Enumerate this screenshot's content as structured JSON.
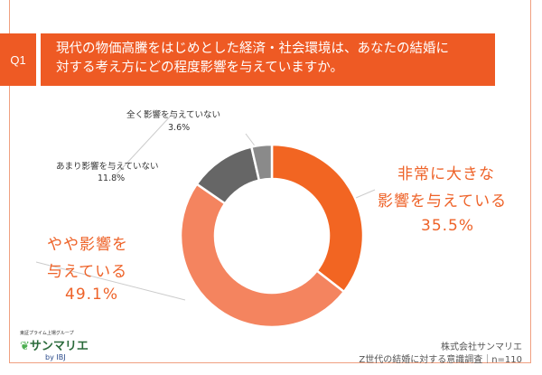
{
  "header": {
    "q_label": "Q1",
    "question_line1": "現代の物価高騰をはじめとした経済・社会環境は、あなたの結婚に",
    "question_line2": "対する考え方にどの程度影響を与えていますか。"
  },
  "chart_data": {
    "type": "pie",
    "donut": true,
    "categories": [
      "非常に大きな影響を与えている",
      "やや影響を与えている",
      "あまり影響を与えていない",
      "全く影響を与えていない"
    ],
    "values": [
      35.5,
      49.1,
      11.8,
      3.6
    ],
    "unit": "%",
    "colors": [
      "#f26522",
      "#f4845f",
      "#666666",
      "#8a8a8a"
    ],
    "start": "top",
    "direction": "clockwise",
    "labels": {
      "s0_line1": "非常に大きな",
      "s0_line2": "影響を与えている",
      "s0_value": "35.5%",
      "s1_line1": "やや影響を",
      "s1_line2": "与えている",
      "s1_value": "49.1%",
      "s2_line1": "あまり影響を与えていない",
      "s2_value": "11.8%",
      "s3_line1": "全く影響を与えていない",
      "s3_value": "3.6%"
    }
  },
  "footer": {
    "company": "株式会社サンマリエ",
    "survey": "Z世代の結婚に対する意識調査｜n=110",
    "logo_tagline": "東証プライム上場グループ",
    "logo_name": "サンマリエ",
    "logo_by": "by IBJ"
  }
}
